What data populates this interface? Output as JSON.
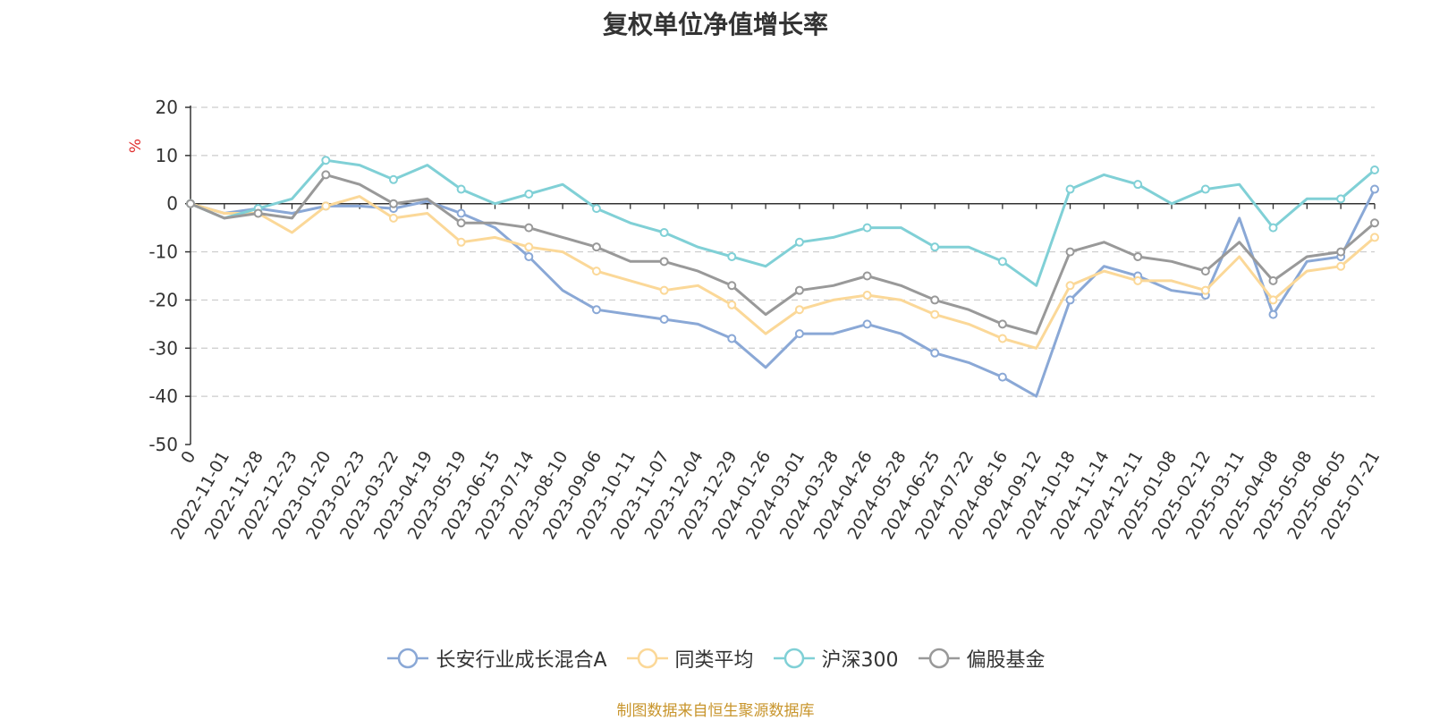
{
  "title": "复权单位净值增长率",
  "source": "制图数据来自恒生聚源数据库",
  "chart_data": {
    "type": "line",
    "ylabel": "%",
    "ylim": [
      -50,
      20
    ],
    "yticks": [
      20,
      10,
      0,
      -10,
      -20,
      -30,
      -40,
      -50
    ],
    "grid": true,
    "legend_position": "bottom",
    "x_tick_labels": [
      "0",
      "2022-11-01",
      "2022-11-28",
      "2022-12-23",
      "2023-01-20",
      "2023-02-23",
      "2023-03-22",
      "2023-04-19",
      "2023-05-19",
      "2023-06-15",
      "2023-07-14",
      "2023-08-10",
      "2023-09-06",
      "2023-10-11",
      "2023-11-07",
      "2023-12-04",
      "2023-12-29",
      "2024-01-26",
      "2024-03-01",
      "2024-03-28",
      "2024-04-26",
      "2024-05-28",
      "2024-06-25",
      "2024-07-22",
      "2024-08-16",
      "2024-09-12",
      "2024-10-18",
      "2024-11-14",
      "2024-12-11",
      "2025-01-08",
      "2025-02-12",
      "2025-03-11",
      "2025-04-08",
      "2025-05-08",
      "2025-06-05",
      "2025-07-21"
    ],
    "x": [
      "0",
      "2022-11-01",
      "2022-11-28",
      "2022-12-23",
      "2023-01-20",
      "2023-02-23",
      "2023-03-22",
      "2023-04-19",
      "2023-05-19",
      "2023-06-15",
      "2023-07-14",
      "2023-08-10",
      "2023-09-06",
      "2023-10-11",
      "2023-11-07",
      "2023-12-04",
      "2023-12-29",
      "2024-01-26",
      "2024-03-01",
      "2024-03-28",
      "2024-04-26",
      "2024-05-28",
      "2024-06-25",
      "2024-07-22",
      "2024-08-16",
      "2024-09-12",
      "2024-10-18",
      "2024-11-14",
      "2024-12-11",
      "2025-01-08",
      "2025-02-12",
      "2025-03-11",
      "2025-04-08",
      "2025-05-08",
      "2025-06-05",
      "2025-07-21"
    ],
    "series": [
      {
        "name": "长安行业成长混合A",
        "color": "#8aa8d6",
        "values": [
          0,
          -2,
          -1,
          -2,
          -0.5,
          -0.5,
          -1,
          0.5,
          -2,
          -5,
          -11,
          -18,
          -22,
          -23,
          -24,
          -25,
          -28,
          -34,
          -27,
          -27,
          -25,
          -27,
          -31,
          -33,
          -36,
          -40,
          -20,
          -13,
          -15,
          -18,
          -19,
          -3,
          -23,
          -12,
          -11,
          3
        ]
      },
      {
        "name": "同类平均",
        "color": "#fbd898",
        "values": [
          0,
          -2,
          -2,
          -6,
          -0.5,
          1.5,
          -3,
          -2,
          -8,
          -7,
          -9,
          -10,
          -14,
          -16,
          -18,
          -17,
          -21,
          -27,
          -22,
          -20,
          -19,
          -20,
          -23,
          -25,
          -28,
          -30,
          -17,
          -14,
          -16,
          -16,
          -18,
          -11,
          -20,
          -14,
          -13,
          -7
        ]
      },
      {
        "name": "沪深300",
        "color": "#80d0d6",
        "values": [
          0,
          -3,
          -1,
          1,
          9,
          8,
          5,
          8,
          3,
          0,
          2,
          4,
          -1,
          -4,
          -6,
          -9,
          -11,
          -13,
          -8,
          -7,
          -5,
          -5,
          -9,
          -9,
          -12,
          -17,
          3,
          6,
          4,
          0,
          3,
          4,
          -5,
          1,
          1,
          7
        ]
      },
      {
        "name": "偏股基金",
        "color": "#999999",
        "values": [
          0,
          -3,
          -2,
          -3,
          6,
          4,
          0,
          1,
          -4,
          -4,
          -5,
          -7,
          -9,
          -12,
          -12,
          -14,
          -17,
          -23,
          -18,
          -17,
          -15,
          -17,
          -20,
          -22,
          -25,
          -27,
          -10,
          -8,
          -11,
          -12,
          -14,
          -8,
          -16,
          -11,
          -10,
          -4
        ]
      }
    ]
  }
}
